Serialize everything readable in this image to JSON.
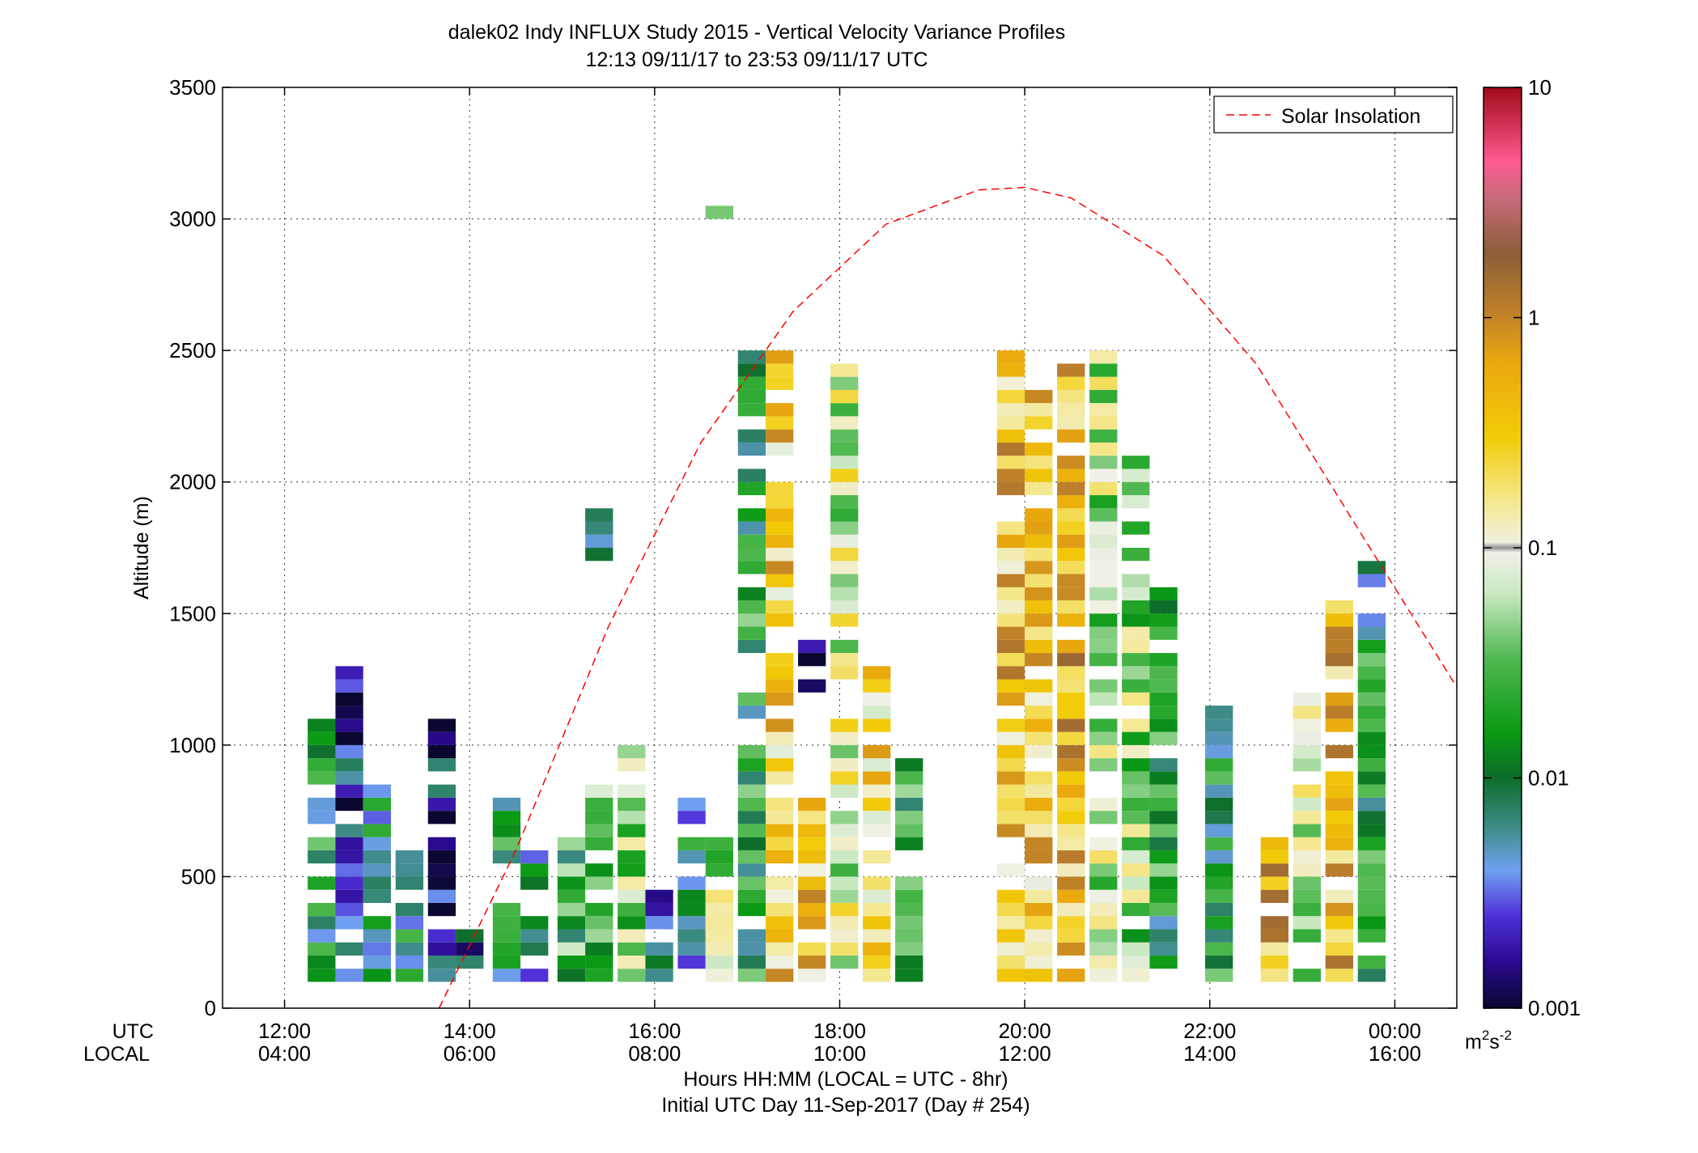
{
  "chart_data": {
    "type": "heatmap",
    "title": "dalek02 Indy INFLUX Study 2015 - Vertical Velocity Variance Profiles",
    "subtitle": "12:13 09/11/17 to 23:53 09/11/17  UTC",
    "xlabel": "Hours HH:MM  (LOCAL = UTC - 8hr)",
    "xlabel2": "Initial UTC Day 11-Sep-2017 (Day # 254)",
    "ylabel": "Altitude (m)",
    "xlim": [
      11.33,
      24.67
    ],
    "ylim": [
      0,
      3500
    ],
    "grid": true,
    "row_labels": {
      "utc": "UTC",
      "local": "LOCAL"
    },
    "x_ticks": [
      {
        "x": 12,
        "utc": "12:00",
        "local": "04:00"
      },
      {
        "x": 14,
        "utc": "14:00",
        "local": "06:00"
      },
      {
        "x": 16,
        "utc": "16:00",
        "local": "08:00"
      },
      {
        "x": 18,
        "utc": "18:00",
        "local": "10:00"
      },
      {
        "x": 20,
        "utc": "20:00",
        "local": "12:00"
      },
      {
        "x": 22,
        "utc": "22:00",
        "local": "14:00"
      },
      {
        "x": 24,
        "utc": "00:00",
        "local": "16:00"
      }
    ],
    "y_ticks": [
      0,
      500,
      1000,
      1500,
      2000,
      2500,
      3000,
      3500
    ],
    "colorbar": {
      "scale": "log",
      "range": [
        0.001,
        10
      ],
      "ticks": [
        {
          "value": 10,
          "label": "10"
        },
        {
          "value": 1,
          "label": "1"
        },
        {
          "value": 0.1,
          "label": "0.1"
        },
        {
          "value": 0.01,
          "label": "0.01"
        },
        {
          "value": 0.001,
          "label": "0.001"
        }
      ],
      "unit_base": "m",
      "unit_exp1": "2",
      "unit_mid": "s",
      "unit_exp2": "-2"
    },
    "series": [
      {
        "name": "Solar Insolation",
        "type": "line",
        "style": "dashed",
        "color": "#ff0000",
        "x": [
          13.67,
          14.5,
          15.5,
          16.5,
          17.5,
          18.5,
          19.5,
          20.0,
          20.5,
          21.5,
          22.5,
          23.5,
          24.67
        ],
        "y": [
          0,
          600,
          1450,
          2150,
          2650,
          2980,
          3110,
          3120,
          3080,
          2860,
          2450,
          1880,
          1220
        ]
      }
    ],
    "legend": {
      "position": "top-right"
    },
    "cell_height_m": 50,
    "cells": [
      {
        "x": 12.4,
        "w": 0.3,
        "y0": 100,
        "y1": 1100,
        "v": 0.012
      },
      {
        "x": 12.7,
        "w": 0.3,
        "y0": 100,
        "y1": 1300,
        "v": 0.0025
      },
      {
        "x": 13.0,
        "w": 0.3,
        "y0": 100,
        "y1": 850,
        "v": 0.008
      },
      {
        "x": 13.35,
        "w": 0.3,
        "y0": 100,
        "y1": 600,
        "v": 0.01
      },
      {
        "x": 13.7,
        "w": 0.3,
        "y0": 100,
        "y1": 1150,
        "v": 0.002
      },
      {
        "x": 14.0,
        "w": 0.3,
        "y0": 100,
        "y1": 300,
        "v": 0.004
      },
      {
        "x": 14.4,
        "w": 0.3,
        "y0": 100,
        "y1": 800,
        "v": 0.012
      },
      {
        "x": 14.7,
        "w": 0.3,
        "y0": 100,
        "y1": 600,
        "v": 0.006
      },
      {
        "x": 15.1,
        "w": 0.3,
        "y0": 100,
        "y1": 650,
        "v": 0.02
      },
      {
        "x": 15.4,
        "w": 0.3,
        "y0": 100,
        "y1": 850,
        "v": 0.03
      },
      {
        "x": 15.4,
        "w": 0.3,
        "y0": 1700,
        "y1": 1900,
        "v": 0.012
      },
      {
        "x": 15.75,
        "w": 0.3,
        "y0": 100,
        "y1": 1000,
        "v": 0.04
      },
      {
        "x": 16.05,
        "w": 0.3,
        "y0": 100,
        "y1": 450,
        "v": 0.005
      },
      {
        "x": 16.4,
        "w": 0.3,
        "y0": 100,
        "y1": 800,
        "v": 0.008
      },
      {
        "x": 16.7,
        "w": 0.3,
        "y0": 100,
        "y1": 650,
        "v": 0.06
      },
      {
        "x": 16.7,
        "w": 0.3,
        "y0": 3000,
        "y1": 3050,
        "v": 0.018
      },
      {
        "x": 17.05,
        "w": 0.3,
        "y0": 100,
        "y1": 2500,
        "v": 0.015
      },
      {
        "x": 17.35,
        "w": 0.3,
        "y0": 100,
        "y1": 2500,
        "v": 0.28
      },
      {
        "x": 17.7,
        "w": 0.3,
        "y0": 100,
        "y1": 800,
        "v": 0.3
      },
      {
        "x": 17.7,
        "w": 0.3,
        "y0": 1200,
        "y1": 1400,
        "v": 0.003
      },
      {
        "x": 18.05,
        "w": 0.3,
        "y0": 100,
        "y1": 2450,
        "v": 0.08
      },
      {
        "x": 18.4,
        "w": 0.3,
        "y0": 100,
        "y1": 1300,
        "v": 0.25
      },
      {
        "x": 18.75,
        "w": 0.3,
        "y0": 100,
        "y1": 950,
        "v": 0.015
      },
      {
        "x": 19.85,
        "w": 0.3,
        "y0": 100,
        "y1": 2500,
        "v": 0.35
      },
      {
        "x": 20.15,
        "w": 0.3,
        "y0": 100,
        "y1": 2350,
        "v": 0.3
      },
      {
        "x": 20.5,
        "w": 0.3,
        "y0": 100,
        "y1": 2450,
        "v": 0.45
      },
      {
        "x": 20.85,
        "w": 0.3,
        "y0": 100,
        "y1": 2550,
        "v": 0.06
      },
      {
        "x": 21.2,
        "w": 0.3,
        "y0": 100,
        "y1": 2100,
        "v": 0.05
      },
      {
        "x": 21.5,
        "w": 0.3,
        "y0": 100,
        "y1": 1600,
        "v": 0.015
      },
      {
        "x": 22.1,
        "w": 0.3,
        "y0": 100,
        "y1": 1150,
        "v": 0.012
      },
      {
        "x": 22.7,
        "w": 0.3,
        "y0": 100,
        "y1": 650,
        "v": 0.5
      },
      {
        "x": 23.05,
        "w": 0.3,
        "y0": 100,
        "y1": 1200,
        "v": 0.06
      },
      {
        "x": 23.4,
        "w": 0.3,
        "y0": 100,
        "y1": 1600,
        "v": 0.4
      },
      {
        "x": 23.75,
        "w": 0.3,
        "y0": 100,
        "y1": 1700,
        "v": 0.012
      }
    ]
  }
}
